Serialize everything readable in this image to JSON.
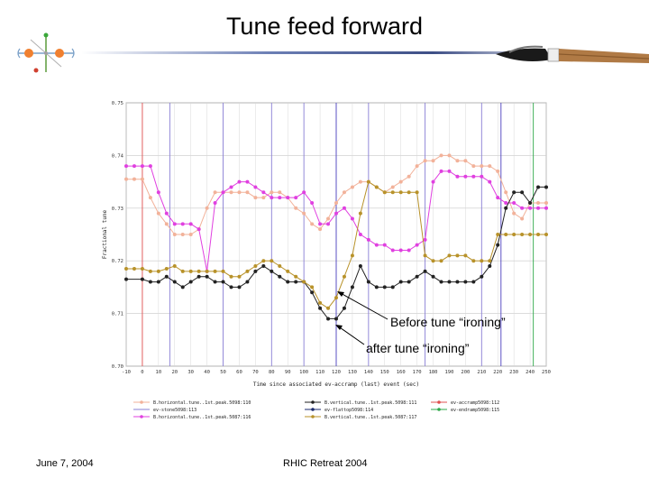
{
  "slide": {
    "title": "Tune feed forward",
    "footer_date": "June 7, 2004",
    "footer_event": "RHIC Retreat 2004",
    "logo_icon": "rhic-atom-logo-icon",
    "brush_icon": "calligraphy-brush-icon"
  },
  "annotations": {
    "before": "Before tune “ironing”",
    "after": "after tune “ironing”"
  },
  "chart_data": {
    "type": "line",
    "xlabel": "Time since associated ev-accramp (last) event (sec)",
    "ylabel": "Fractional tune",
    "xlim": [
      -10,
      250
    ],
    "ylim": [
      0.7,
      0.75
    ],
    "x_ticks": [
      -10,
      0,
      10,
      20,
      30,
      40,
      50,
      60,
      70,
      80,
      90,
      100,
      110,
      120,
      130,
      140,
      150,
      160,
      170,
      180,
      190,
      200,
      210,
      220,
      230,
      240,
      250
    ],
    "y_ticks": [
      0.7,
      0.71,
      0.72,
      0.73,
      0.74,
      0.75
    ],
    "grid": true,
    "event_lines": [
      {
        "x": 0,
        "color": "#e05050"
      },
      {
        "x": 17,
        "color": "#8a7fd6"
      },
      {
        "x": 50,
        "color": "#8a7fd6"
      },
      {
        "x": 80,
        "color": "#8a7fd6"
      },
      {
        "x": 100,
        "color": "#8a7fd6"
      },
      {
        "x": 120,
        "color": "#4a3fbf"
      },
      {
        "x": 140,
        "color": "#8a7fd6"
      },
      {
        "x": 175,
        "color": "#8a7fd6"
      },
      {
        "x": 210,
        "color": "#8a7fd6"
      },
      {
        "x": 222,
        "color": "#4a3fbf"
      },
      {
        "x": 242,
        "color": "#2ea84a"
      }
    ],
    "series": [
      {
        "name": "B.horizontal.tune..1st.peak.5098:110",
        "color": "#f2b29a",
        "points": [
          [
            -10,
            0.7355
          ],
          [
            -5,
            0.7355
          ],
          [
            0,
            0.7355
          ],
          [
            5,
            0.732
          ],
          [
            10,
            0.729
          ],
          [
            15,
            0.727
          ],
          [
            20,
            0.725
          ],
          [
            25,
            0.725
          ],
          [
            30,
            0.725
          ],
          [
            35,
            0.726
          ],
          [
            40,
            0.73
          ],
          [
            45,
            0.733
          ],
          [
            50,
            0.733
          ],
          [
            55,
            0.733
          ],
          [
            60,
            0.733
          ],
          [
            65,
            0.733
          ],
          [
            70,
            0.732
          ],
          [
            75,
            0.732
          ],
          [
            80,
            0.733
          ],
          [
            85,
            0.733
          ],
          [
            90,
            0.732
          ],
          [
            95,
            0.73
          ],
          [
            100,
            0.729
          ],
          [
            105,
            0.727
          ],
          [
            110,
            0.726
          ],
          [
            115,
            0.728
          ],
          [
            120,
            0.731
          ],
          [
            125,
            0.733
          ],
          [
            130,
            0.734
          ],
          [
            135,
            0.735
          ],
          [
            140,
            0.735
          ],
          [
            145,
            0.734
          ],
          [
            150,
            0.733
          ],
          [
            155,
            0.734
          ],
          [
            160,
            0.735
          ],
          [
            165,
            0.736
          ],
          [
            170,
            0.738
          ],
          [
            175,
            0.739
          ],
          [
            180,
            0.739
          ],
          [
            185,
            0.74
          ],
          [
            190,
            0.74
          ],
          [
            195,
            0.739
          ],
          [
            200,
            0.739
          ],
          [
            205,
            0.738
          ],
          [
            210,
            0.738
          ],
          [
            215,
            0.738
          ],
          [
            220,
            0.737
          ],
          [
            225,
            0.733
          ],
          [
            230,
            0.729
          ],
          [
            235,
            0.728
          ],
          [
            240,
            0.731
          ],
          [
            245,
            0.731
          ],
          [
            250,
            0.731
          ]
        ]
      },
      {
        "name": "B.horizontal.tune..1st.peak.5087:116",
        "color": "#e040e0",
        "points": [
          [
            -10,
            0.738
          ],
          [
            -5,
            0.738
          ],
          [
            0,
            0.738
          ],
          [
            5,
            0.738
          ],
          [
            10,
            0.733
          ],
          [
            15,
            0.729
          ],
          [
            20,
            0.727
          ],
          [
            25,
            0.727
          ],
          [
            30,
            0.727
          ],
          [
            35,
            0.726
          ],
          [
            40,
            0.718
          ],
          [
            45,
            0.731
          ],
          [
            50,
            0.733
          ],
          [
            55,
            0.734
          ],
          [
            60,
            0.735
          ],
          [
            65,
            0.735
          ],
          [
            70,
            0.734
          ],
          [
            75,
            0.733
          ],
          [
            80,
            0.732
          ],
          [
            85,
            0.732
          ],
          [
            90,
            0.732
          ],
          [
            95,
            0.732
          ],
          [
            100,
            0.733
          ],
          [
            105,
            0.731
          ],
          [
            110,
            0.727
          ],
          [
            115,
            0.727
          ],
          [
            120,
            0.729
          ],
          [
            125,
            0.73
          ],
          [
            130,
            0.728
          ],
          [
            135,
            0.725
          ],
          [
            140,
            0.724
          ],
          [
            145,
            0.723
          ],
          [
            150,
            0.723
          ],
          [
            155,
            0.722
          ],
          [
            160,
            0.722
          ],
          [
            165,
            0.722
          ],
          [
            170,
            0.723
          ],
          [
            175,
            0.724
          ],
          [
            180,
            0.735
          ],
          [
            185,
            0.737
          ],
          [
            190,
            0.737
          ],
          [
            195,
            0.736
          ],
          [
            200,
            0.736
          ],
          [
            205,
            0.736
          ],
          [
            210,
            0.736
          ],
          [
            215,
            0.735
          ],
          [
            220,
            0.732
          ],
          [
            225,
            0.731
          ],
          [
            230,
            0.731
          ],
          [
            235,
            0.73
          ],
          [
            240,
            0.73
          ],
          [
            245,
            0.73
          ],
          [
            250,
            0.73
          ]
        ]
      },
      {
        "name": "B.vertical.tune..1st.peak.5098:111",
        "color": "#222222",
        "points": [
          [
            -10,
            0.7165
          ],
          [
            0,
            0.7165
          ],
          [
            5,
            0.716
          ],
          [
            10,
            0.716
          ],
          [
            15,
            0.717
          ],
          [
            20,
            0.716
          ],
          [
            25,
            0.715
          ],
          [
            30,
            0.716
          ],
          [
            35,
            0.717
          ],
          [
            40,
            0.717
          ],
          [
            45,
            0.716
          ],
          [
            50,
            0.716
          ],
          [
            55,
            0.715
          ],
          [
            60,
            0.715
          ],
          [
            65,
            0.716
          ],
          [
            70,
            0.718
          ],
          [
            75,
            0.719
          ],
          [
            80,
            0.718
          ],
          [
            85,
            0.717
          ],
          [
            90,
            0.716
          ],
          [
            95,
            0.716
          ],
          [
            100,
            0.716
          ],
          [
            105,
            0.714
          ],
          [
            110,
            0.711
          ],
          [
            115,
            0.709
          ],
          [
            120,
            0.709
          ],
          [
            125,
            0.711
          ],
          [
            130,
            0.715
          ],
          [
            135,
            0.719
          ],
          [
            140,
            0.716
          ],
          [
            145,
            0.715
          ],
          [
            150,
            0.715
          ],
          [
            155,
            0.715
          ],
          [
            160,
            0.716
          ],
          [
            165,
            0.716
          ],
          [
            170,
            0.717
          ],
          [
            175,
            0.718
          ],
          [
            180,
            0.717
          ],
          [
            185,
            0.716
          ],
          [
            190,
            0.716
          ],
          [
            195,
            0.716
          ],
          [
            200,
            0.716
          ],
          [
            205,
            0.716
          ],
          [
            210,
            0.717
          ],
          [
            215,
            0.719
          ],
          [
            220,
            0.723
          ],
          [
            225,
            0.73
          ],
          [
            230,
            0.733
          ],
          [
            235,
            0.733
          ],
          [
            240,
            0.731
          ],
          [
            245,
            0.734
          ],
          [
            250,
            0.734
          ]
        ]
      },
      {
        "name": "B.vertical.tune..1st.peak.5087:117",
        "color": "#b8922a",
        "points": [
          [
            -10,
            0.7185
          ],
          [
            -5,
            0.7185
          ],
          [
            0,
            0.7185
          ],
          [
            5,
            0.718
          ],
          [
            10,
            0.718
          ],
          [
            15,
            0.7185
          ],
          [
            20,
            0.719
          ],
          [
            25,
            0.718
          ],
          [
            30,
            0.718
          ],
          [
            35,
            0.718
          ],
          [
            40,
            0.718
          ],
          [
            45,
            0.718
          ],
          [
            50,
            0.718
          ],
          [
            55,
            0.717
          ],
          [
            60,
            0.717
          ],
          [
            65,
            0.718
          ],
          [
            70,
            0.719
          ],
          [
            75,
            0.72
          ],
          [
            80,
            0.72
          ],
          [
            85,
            0.719
          ],
          [
            90,
            0.718
          ],
          [
            95,
            0.717
          ],
          [
            100,
            0.716
          ],
          [
            105,
            0.715
          ],
          [
            110,
            0.712
          ],
          [
            115,
            0.711
          ],
          [
            120,
            0.713
          ],
          [
            125,
            0.717
          ],
          [
            130,
            0.721
          ],
          [
            135,
            0.729
          ],
          [
            140,
            0.735
          ],
          [
            145,
            0.734
          ],
          [
            150,
            0.733
          ],
          [
            155,
            0.733
          ],
          [
            160,
            0.733
          ],
          [
            165,
            0.733
          ],
          [
            170,
            0.733
          ],
          [
            175,
            0.721
          ],
          [
            180,
            0.72
          ],
          [
            185,
            0.72
          ],
          [
            190,
            0.721
          ],
          [
            195,
            0.721
          ],
          [
            200,
            0.721
          ],
          [
            205,
            0.72
          ],
          [
            210,
            0.72
          ],
          [
            215,
            0.72
          ],
          [
            220,
            0.725
          ],
          [
            225,
            0.725
          ],
          [
            230,
            0.725
          ],
          [
            235,
            0.725
          ],
          [
            240,
            0.725
          ],
          [
            245,
            0.725
          ],
          [
            250,
            0.725
          ]
        ]
      }
    ],
    "legend": [
      {
        "label": "B.horizontal.tune..1st.peak.5098:110",
        "color": "#f2b29a",
        "marker": true
      },
      {
        "label": "B.vertical.tune..1st.peak.5098:111",
        "color": "#222222",
        "marker": true
      },
      {
        "label": "ev-accramp5098:112",
        "color": "#e05050",
        "marker": true
      },
      {
        "label": "ev-stone5098:113",
        "color": "#8a7fd6",
        "marker": false
      },
      {
        "label": "ev-flattop5098:114",
        "color": "#1a2a6c",
        "marker": true
      },
      {
        "label": "ev-endramp5098:115",
        "color": "#2ea84a",
        "marker": true
      },
      {
        "label": "B.horizontal.tune..1st.peak.5087:116",
        "color": "#e040e0",
        "marker": true
      },
      {
        "label": "B.vertical.tune..1st.peak.5087:117",
        "color": "#b8922a",
        "marker": true
      }
    ]
  }
}
